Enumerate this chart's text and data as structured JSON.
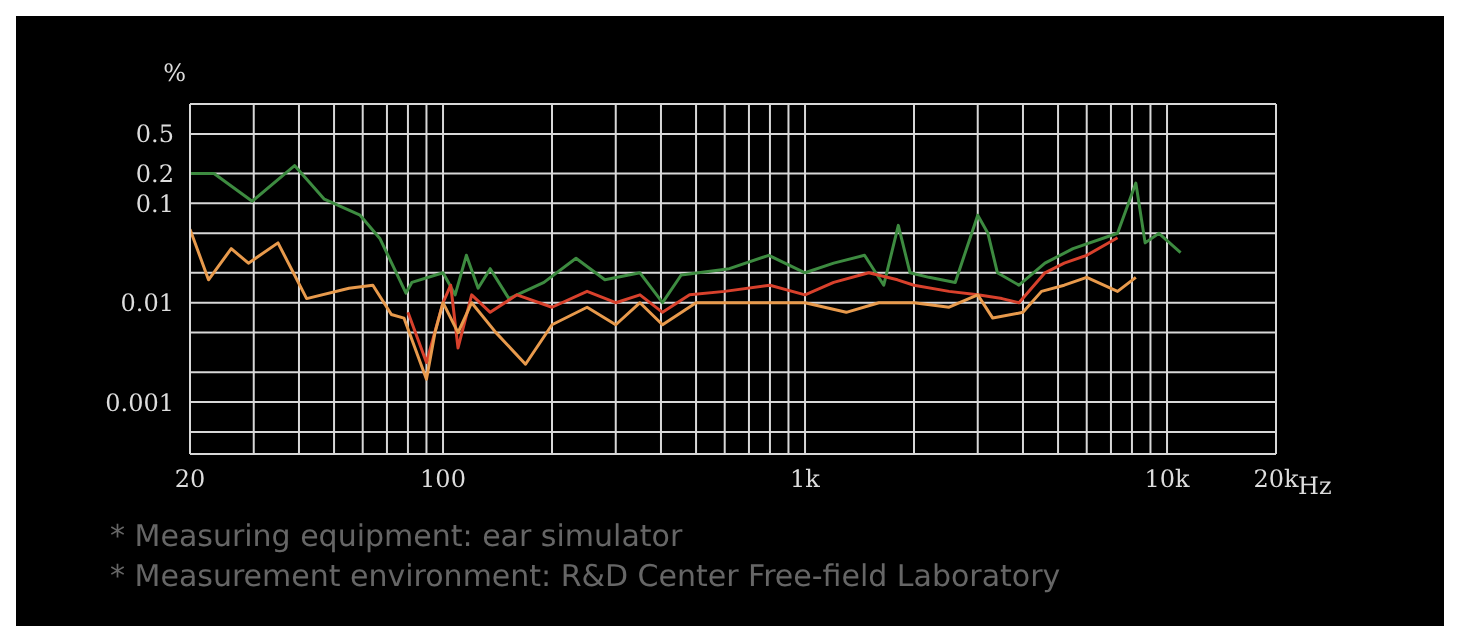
{
  "chart_data": {
    "type": "line",
    "ylabel": "%",
    "log": "xy",
    "grid": true,
    "legend": false,
    "marker": "none",
    "line_style": "solid",
    "xlim": [
      20,
      20000
    ],
    "xticks": [
      20,
      {
        "value": 30,
        "label": null
      },
      {
        "value": 40,
        "label": null
      },
      {
        "value": 50,
        "label": null
      },
      {
        "value": 60,
        "label": null
      },
      {
        "value": 70,
        "label": null
      },
      {
        "value": 80,
        "label": null
      },
      {
        "value": 90,
        "label": null
      },
      100,
      {
        "value": 200,
        "label": null
      },
      {
        "value": 300,
        "label": null
      },
      {
        "value": 400,
        "label": null
      },
      {
        "value": 500,
        "label": null
      },
      {
        "value": 600,
        "label": null
      },
      {
        "value": 700,
        "label": null
      },
      {
        "value": 800,
        "label": null
      },
      {
        "value": 900,
        "label": null
      },
      {
        "value": 1000,
        "label": "1k"
      },
      {
        "value": 2000,
        "label": null
      },
      {
        "value": 3000,
        "label": null
      },
      {
        "value": 4000,
        "label": null
      },
      {
        "value": 5000,
        "label": null
      },
      {
        "value": 6000,
        "label": null
      },
      {
        "value": 7000,
        "label": null
      },
      {
        "value": 8000,
        "label": null
      },
      {
        "value": 9000,
        "label": null
      },
      {
        "value": 10000,
        "label": "10k"
      },
      {
        "value": 20000,
        "label": "20k"
      }
    ],
    "xlabel": "Hz",
    "ylim": [
      0.0003,
      1
    ],
    "yticks": [
      {
        "value": 0.0005,
        "label": null
      },
      0.001,
      {
        "value": 0.002,
        "label": null
      },
      {
        "value": 0.005,
        "label": null
      },
      0.01,
      {
        "value": 0.02,
        "label": null
      },
      {
        "value": 0.05,
        "label": null
      },
      0.1,
      0.2,
      0.5,
      {
        "value": 1,
        "label": null
      }
    ],
    "series": [
      {
        "color": "#3d8b40",
        "x": [
          20,
          23.3,
          29.7,
          38.9,
          47,
          59,
          67,
          79,
          82,
          100,
          108,
          116,
          125,
          135,
          152,
          190,
          233,
          280,
          350,
          404,
          455,
          618,
          794,
          1000,
          1200,
          1460,
          1650,
          1810,
          1950,
          2200,
          2600,
          3000,
          3200,
          3400,
          3900,
          4600,
          5500,
          7300,
          8200,
          8700,
          9500,
          10900
        ],
        "values": [
          0.2,
          0.2,
          0.105,
          0.24,
          0.11,
          0.076,
          0.044,
          0.0125,
          0.016,
          0.02,
          0.012,
          0.03,
          0.014,
          0.022,
          0.011,
          0.016,
          0.028,
          0.017,
          0.02,
          0.01,
          0.019,
          0.022,
          0.03,
          0.02,
          0.025,
          0.03,
          0.015,
          0.06,
          0.02,
          0.018,
          0.016,
          0.076,
          0.05,
          0.02,
          0.015,
          0.025,
          0.035,
          0.05,
          0.16,
          0.04,
          0.05,
          0.032
        ]
      },
      {
        "color": "#d8412c",
        "x": [
          80,
          90,
          100,
          105,
          110,
          120,
          135,
          160,
          200,
          250,
          300,
          350,
          404,
          480,
          600,
          800,
          1000,
          1200,
          1500,
          1800,
          2000,
          2500,
          3000,
          3500,
          3900,
          4600,
          5200,
          6000,
          7300
        ],
        "values": [
          0.008,
          0.0025,
          0.01,
          0.015,
          0.0035,
          0.012,
          0.008,
          0.012,
          0.009,
          0.013,
          0.01,
          0.012,
          0.008,
          0.012,
          0.013,
          0.015,
          0.012,
          0.016,
          0.02,
          0.017,
          0.015,
          0.013,
          0.012,
          0.011,
          0.01,
          0.02,
          0.025,
          0.03,
          0.045
        ]
      },
      {
        "color": "#e89a4c",
        "x": [
          20,
          22.5,
          26,
          29,
          35,
          42,
          55,
          64,
          72,
          78,
          90,
          95,
          100,
          110,
          120,
          140,
          169,
          200,
          250,
          300,
          350,
          404,
          500,
          700,
          1000,
          1300,
          1600,
          2000,
          2500,
          3000,
          3300,
          4000,
          4500,
          5200,
          6000,
          7300,
          8200
        ],
        "values": [
          0.055,
          0.017,
          0.035,
          0.025,
          0.04,
          0.011,
          0.014,
          0.015,
          0.0076,
          0.007,
          0.0017,
          0.005,
          0.01,
          0.005,
          0.01,
          0.005,
          0.0024,
          0.006,
          0.009,
          0.006,
          0.01,
          0.006,
          0.01,
          0.01,
          0.01,
          0.008,
          0.01,
          0.01,
          0.009,
          0.012,
          0.007,
          0.008,
          0.013,
          0.015,
          0.018,
          0.013,
          0.018
        ]
      }
    ],
    "annotations": [
      "* Measuring equipment: ear simulator",
      "* Measurement environment: R&D Center Free-field Laboratory"
    ]
  }
}
